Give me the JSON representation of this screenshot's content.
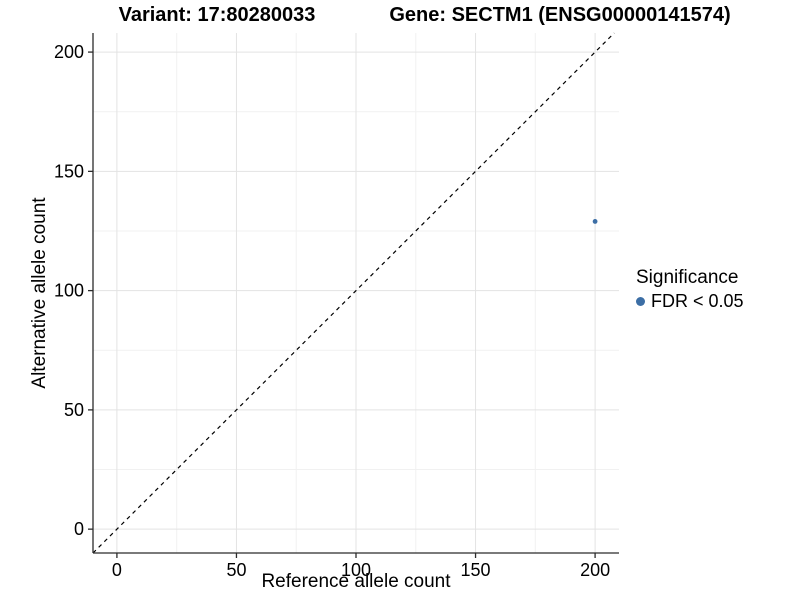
{
  "header": {
    "variant_title": "Variant: 17:80280033",
    "gene_title": "Gene: SECTM1 (ENSG00000141574)"
  },
  "legend": {
    "title": "Significance",
    "items": [
      {
        "label": "FDR < 0.05",
        "color": "#3C6EA5"
      }
    ]
  },
  "chart_data": {
    "type": "scatter",
    "xlabel": "Reference allele count",
    "ylabel": "Alternative allele count",
    "xlim": [
      -10,
      210
    ],
    "ylim": [
      -10,
      208
    ],
    "xticks": [
      0,
      50,
      100,
      150,
      200
    ],
    "yticks": [
      0,
      50,
      100,
      150,
      200
    ],
    "minor_xticks": [
      25,
      75,
      125,
      175
    ],
    "minor_yticks": [
      25,
      75,
      125,
      175
    ],
    "grid": "major+minor",
    "legend_position": "right",
    "identity_line": {
      "style": "dashed",
      "color": "#000000"
    },
    "series": [
      {
        "name": "FDR < 0.05",
        "color": "#3C6EA5",
        "points": [
          {
            "x": 200,
            "y": 129
          }
        ]
      }
    ],
    "colors": {
      "major_grid": "#E3E3E3",
      "minor_grid": "#F1F1F1",
      "axis_line": "#2B2B2B",
      "tick_label": "#000000"
    }
  }
}
